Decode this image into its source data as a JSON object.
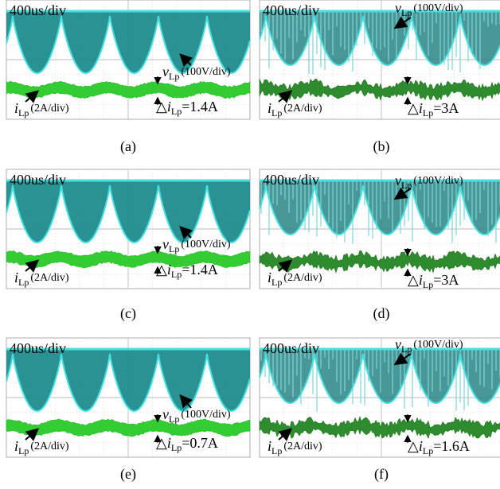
{
  "panels": [
    {
      "timebase": "400us/div",
      "voltage": {
        "symbol": "v",
        "subscript": "Lp",
        "scale": "(100V/div)"
      },
      "current": {
        "symbol": "i",
        "subscript": "Lp",
        "scale": "(2A/div)"
      },
      "ripple": {
        "prefix": "△",
        "symbol": "i",
        "subscript": "Lp",
        "value": "=1.4A"
      },
      "caption": "(a)"
    },
    {
      "timebase": "400us/div",
      "voltage": {
        "symbol": "v",
        "subscript": "Lp",
        "scale": "(100V/div)"
      },
      "current": {
        "symbol": "i",
        "subscript": "Lp",
        "scale": "(2A/div)"
      },
      "ripple": {
        "prefix": "△",
        "symbol": "i",
        "subscript": "Lp",
        "value": "=3A"
      },
      "caption": "(b)"
    },
    {
      "timebase": "400us/div",
      "voltage": {
        "symbol": "v",
        "subscript": "Lp",
        "scale": "(100V/div)"
      },
      "current": {
        "symbol": "i",
        "subscript": "Lp",
        "scale": "(2A/div)"
      },
      "ripple": {
        "prefix": "△",
        "symbol": "i",
        "subscript": "Lp",
        "value": "=1.4A"
      },
      "caption": "(c)"
    },
    {
      "timebase": "400us/div",
      "voltage": {
        "symbol": "v",
        "subscript": "Lp",
        "scale": "(100V/div)"
      },
      "current": {
        "symbol": "i",
        "subscript": "Lp",
        "scale": "(2A/div)"
      },
      "ripple": {
        "prefix": "△",
        "symbol": "i",
        "subscript": "Lp",
        "value": "=3A"
      },
      "caption": "(d)"
    },
    {
      "timebase": "400us/div",
      "voltage": {
        "symbol": "v",
        "subscript": "Lp",
        "scale": "(100V/div)"
      },
      "current": {
        "symbol": "i",
        "subscript": "Lp",
        "scale": "(2A/div)"
      },
      "ripple": {
        "prefix": "△",
        "symbol": "i",
        "subscript": "Lp",
        "value": "=0.7A"
      },
      "caption": "(e)"
    },
    {
      "timebase": "400us/div",
      "voltage": {
        "symbol": "v",
        "subscript": "Lp",
        "scale": "(100V/div)"
      },
      "current": {
        "symbol": "i",
        "subscript": "Lp",
        "scale": "(2A/div)"
      },
      "ripple": {
        "prefix": "△",
        "symbol": "i",
        "subscript": "Lp",
        "value": "=1.6A"
      },
      "caption": "(f)"
    }
  ]
}
